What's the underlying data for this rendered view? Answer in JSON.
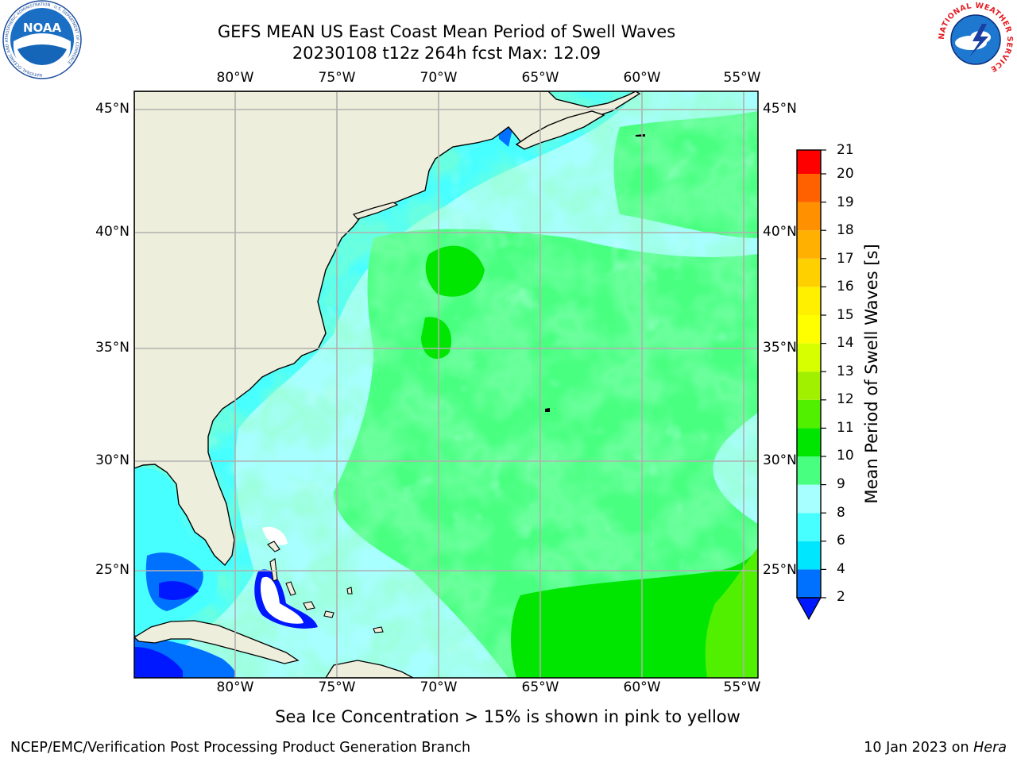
{
  "header": {
    "title_line1": "GEFS MEAN US East Coast Mean Period of Swell Waves",
    "title_line2": "20230108 t12z 264h fcst   Max: 12.09",
    "noaa_logo_text": "NOAA",
    "noaa_ring_text": "NATIONAL OCEANIC AND ATMOSPHERIC ADMINISTRATION · U.S. DEPARTMENT OF COMMERCE",
    "nws_ring_text": "NATIONAL WEATHER SERVICE"
  },
  "map": {
    "lon_labels": [
      "80°W",
      "75°W",
      "70°W",
      "65°W",
      "60°W",
      "55°W"
    ],
    "lat_labels": [
      "45°N",
      "40°N",
      "35°N",
      "30°N",
      "25°N"
    ],
    "colors": {
      "land": "#eeeedc",
      "grid": "#b0b0b0",
      "missing": "#ffffff"
    }
  },
  "colorbar": {
    "label": "Mean Period of Swell Waves [s]",
    "ticks": [
      "2",
      "4",
      "6",
      "8",
      "9",
      "10",
      "11",
      "12",
      "13",
      "14",
      "15",
      "16",
      "17",
      "18",
      "19",
      "20",
      "21"
    ],
    "colors": [
      "#0070ff",
      "#00e6ff",
      "#48ffff",
      "#a8ffff",
      "#48ff80",
      "#00e600",
      "#50f000",
      "#a0f000",
      "#d8ff00",
      "#ffff00",
      "#fff000",
      "#ffd000",
      "#ffb000",
      "#ff9000",
      "#ff6000",
      "#ff3000",
      "#ff0000"
    ],
    "extend_color": "#0018ff"
  },
  "notes": {
    "sea_ice": "Sea Ice Concentration > 15% is shown in pink to yellow",
    "credit": "NCEP/EMC/Verification Post Processing Product Generation Branch",
    "date": "10 Jan 2023 on ",
    "machine": "Hera"
  }
}
